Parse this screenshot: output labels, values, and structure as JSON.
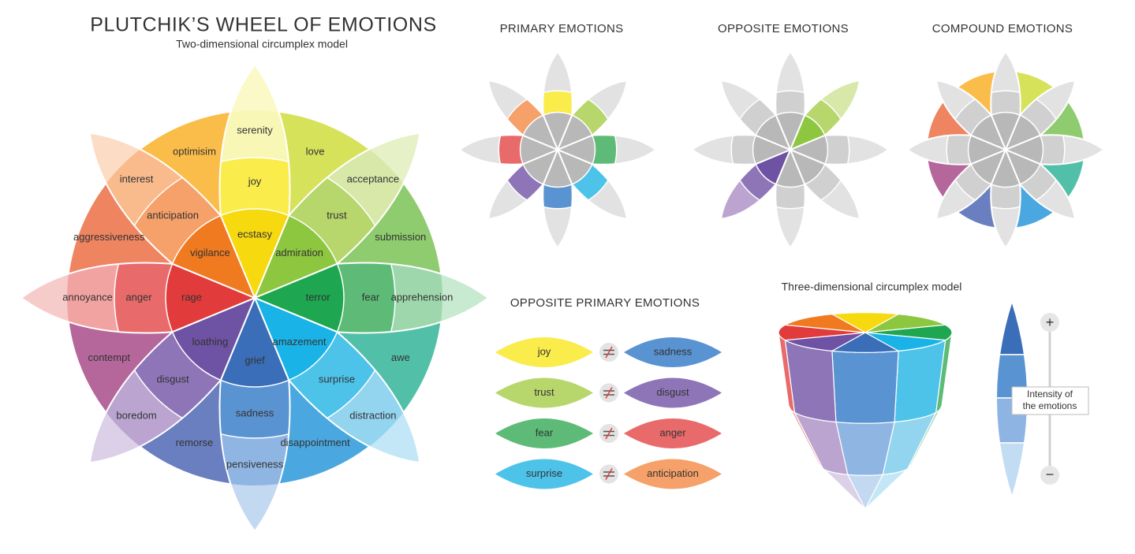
{
  "header": {
    "title": "PLUTCHIK’S WHEEL OF EMOTIONS",
    "subtitle": "Two-dimensional circumplex model"
  },
  "wheel": {
    "petals": [
      {
        "intense": "ecstasy",
        "basic": "joy",
        "mild": "serenity"
      },
      {
        "intense": "admiration",
        "basic": "trust",
        "mild": "acceptance"
      },
      {
        "intense": "terror",
        "basic": "fear",
        "mild": "apprehension"
      },
      {
        "intense": "amazement",
        "basic": "surprise",
        "mild": "distraction"
      },
      {
        "intense": "grief",
        "basic": "sadness",
        "mild": "pensiveness"
      },
      {
        "intense": "loathing",
        "basic": "disgust",
        "mild": "boredom"
      },
      {
        "intense": "rage",
        "basic": "anger",
        "mild": "annoyance"
      },
      {
        "intense": "vigilance",
        "basic": "anticipation",
        "mild": "interest"
      }
    ],
    "combinations": [
      "love",
      "submission",
      "awe",
      "disappointment",
      "remorse",
      "contempt",
      "aggressiveness",
      "optimisim"
    ]
  },
  "panels": {
    "primary": "PRIMARY EMOTIONS",
    "opposite": "OPPOSITE EMOTIONS",
    "compound": "COMPOUND EMOTIONS"
  },
  "opposite_primary": {
    "title": "OPPOSITE PRIMARY EMOTIONS",
    "pairs": [
      [
        "joy",
        "sadness"
      ],
      [
        "trust",
        "disgust"
      ],
      [
        "fear",
        "anger"
      ],
      [
        "surprise",
        "anticipation"
      ]
    ]
  },
  "three_d": {
    "title": "Three-dimensional circumplex model",
    "intensity_label": [
      "Intensity of",
      "the emotions"
    ],
    "plus": "+",
    "minus": "−"
  }
}
